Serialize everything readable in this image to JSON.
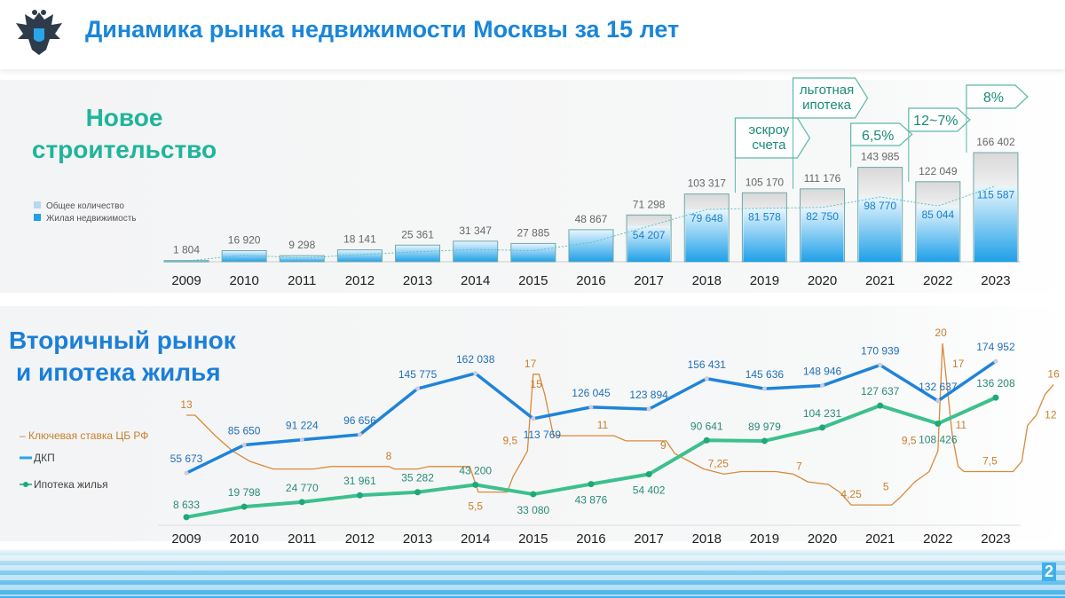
{
  "header": {
    "title": "Динамика рынка недвижимости Москвы за 15 лет",
    "logo": "double-headed-eagle-emblem"
  },
  "page_number": "2",
  "colors": {
    "title": "#1a86d8",
    "new_heading": "#1fb59a",
    "bar_blue": "#2aa5ea",
    "dkp": "#1f84d9",
    "mortgage": "#2fc28f",
    "key_rate": "#d98a3a"
  },
  "chart_data": [
    {
      "type": "bar",
      "title": "Новое строительство",
      "categories": [
        "2009",
        "2010",
        "2011",
        "2012",
        "2013",
        "2014",
        "2015",
        "2016",
        "2017",
        "2018",
        "2019",
        "2020",
        "2021",
        "2022",
        "2023"
      ],
      "series": [
        {
          "name": "Общее количество",
          "values": [
            1804,
            16920,
            9298,
            18141,
            25361,
            31347,
            27885,
            48867,
            71298,
            103317,
            105170,
            111176,
            143985,
            122049,
            166402
          ],
          "labels": [
            "1 804",
            "16 920",
            "9 298",
            "18 141",
            "25 361",
            "31 347",
            "27 885",
            "48 867",
            "71 298",
            "103 317",
            "105 170",
            "111 176",
            "143 985",
            "122 049",
            "166 402"
          ]
        },
        {
          "name": "Жилая недвижимость",
          "values": [
            null,
            null,
            null,
            null,
            null,
            null,
            null,
            null,
            54207,
            79648,
            81578,
            82750,
            98770,
            85044,
            115587
          ],
          "labels": [
            "",
            "",
            "",
            "",
            "",
            "",
            "",
            "",
            "54 207",
            "79 648",
            "81 578",
            "82 750",
            "98 770",
            "85 044",
            "115 587"
          ]
        }
      ],
      "annotations": [
        {
          "year": "2019",
          "text": [
            "эскроу",
            "счета"
          ]
        },
        {
          "year": "2020",
          "text": [
            "льготная",
            "ипотека"
          ]
        },
        {
          "year": "2021",
          "text": [
            "6,5%"
          ]
        },
        {
          "year": "2022",
          "text": [
            "12~7%"
          ]
        },
        {
          "year": "2023",
          "text": [
            "8%"
          ]
        }
      ],
      "trend_line": "dotted",
      "legend": "left"
    },
    {
      "type": "line",
      "title": "Вторичный рынок и ипотека жилья",
      "categories": [
        "2009",
        "2010",
        "2011",
        "2012",
        "2013",
        "2014",
        "2015",
        "2016",
        "2017",
        "2018",
        "2019",
        "2020",
        "2021",
        "2022",
        "2023"
      ],
      "series": [
        {
          "name": "ДКП",
          "values": [
            55673,
            85650,
            91224,
            96656,
            145775,
            162038,
            113769,
            126045,
            123894,
            156431,
            145636,
            148946,
            170939,
            132637,
            174952
          ],
          "labels": [
            "55 673",
            "85 650",
            "91 224",
            "96 656",
            "145 775",
            "162 038",
            "113 769",
            "126 045",
            "123 894",
            "156 431",
            "145 636",
            "148 946",
            "170 939",
            "132 637",
            "174 952"
          ]
        },
        {
          "name": "Ипотека жилья",
          "values": [
            8633,
            19798,
            24770,
            31961,
            35282,
            43200,
            33080,
            43876,
            54402,
            90641,
            89979,
            104231,
            127637,
            108426,
            136208
          ],
          "labels": [
            "8 633",
            "19 798",
            "24 770",
            "31 961",
            "35 282",
            "43 200",
            "33 080",
            "43 876",
            "54 402",
            "90 641",
            "89 979",
            "104 231",
            "127 637",
            "108 426",
            "136 208"
          ]
        },
        {
          "name": "Ключевая ставка ЦБ РФ",
          "points": [
            [
              2009,
              13
            ],
            [
              2009.15,
              13
            ],
            [
              2009.5,
              11
            ],
            [
              2009.8,
              9.5
            ],
            [
              2010.1,
              8.5
            ],
            [
              2010.5,
              7.75
            ],
            [
              2011.2,
              7.75
            ],
            [
              2011.5,
              8
            ],
            [
              2012.5,
              8
            ],
            [
              2012.6,
              7.75
            ],
            [
              2013,
              7.75
            ],
            [
              2013.2,
              8
            ],
            [
              2013.9,
              8
            ],
            [
              2014.05,
              5.5
            ],
            [
              2014.55,
              5.5
            ],
            [
              2014.65,
              7
            ],
            [
              2014.75,
              8
            ],
            [
              2014.9,
              9.5
            ],
            [
              2015.0,
              17
            ],
            [
              2015.1,
              17
            ],
            [
              2015.2,
              15
            ],
            [
              2015.35,
              11
            ],
            [
              2016.4,
              11
            ],
            [
              2016.6,
              10.5
            ],
            [
              2017.3,
              10.5
            ],
            [
              2017.45,
              9.25
            ],
            [
              2017.7,
              8.5
            ],
            [
              2017.95,
              7.75
            ],
            [
              2018.3,
              7.25
            ],
            [
              2018.6,
              7.5
            ],
            [
              2019.2,
              7.5
            ],
            [
              2019.5,
              7.25
            ],
            [
              2019.75,
              6.5
            ],
            [
              2020.1,
              6.25
            ],
            [
              2020.3,
              5.5
            ],
            [
              2020.5,
              4.25
            ],
            [
              2021.2,
              4.25
            ],
            [
              2021.35,
              5
            ],
            [
              2021.6,
              6.5
            ],
            [
              2021.85,
              7.5
            ],
            [
              2022.0,
              9.5
            ],
            [
              2022.08,
              20
            ],
            [
              2022.25,
              11
            ],
            [
              2022.35,
              8
            ],
            [
              2022.45,
              7.5
            ],
            [
              2023.3,
              7.5
            ],
            [
              2023.45,
              8.5
            ],
            [
              2023.55,
              12
            ],
            [
              2023.7,
              13
            ],
            [
              2023.85,
              15
            ],
            [
              2024.0,
              16
            ]
          ],
          "labels": [
            {
              "year": 2009,
              "value": 13,
              "text": "13"
            },
            {
              "year": 2012.5,
              "value": 8,
              "text": "8"
            },
            {
              "year": 2014,
              "value": 5.5,
              "text": "5,5"
            },
            {
              "year": 2014.6,
              "value": 9.5,
              "text": "9,5"
            },
            {
              "year": 2014.95,
              "value": 17,
              "text": "17"
            },
            {
              "year": 2015.05,
              "value": 15,
              "text": "15"
            },
            {
              "year": 2016.2,
              "value": 11,
              "text": "11"
            },
            {
              "year": 2017.25,
              "value": 9,
              "text": "9"
            },
            {
              "year": 2018.2,
              "value": 7.25,
              "text": "7,25"
            },
            {
              "year": 2019.6,
              "value": 7,
              "text": "7"
            },
            {
              "year": 2020.5,
              "value": 4.25,
              "text": "4,25"
            },
            {
              "year": 2021.1,
              "value": 5,
              "text": "5"
            },
            {
              "year": 2021.5,
              "value": 9.5,
              "text": "9,5"
            },
            {
              "year": 2022.05,
              "value": 20,
              "text": "20"
            },
            {
              "year": 2022.35,
              "value": 17,
              "text": "17"
            },
            {
              "year": 2022.4,
              "value": 11,
              "text": "11"
            },
            {
              "year": 2022.9,
              "value": 7.5,
              "text": "7,5"
            },
            {
              "year": 2023.95,
              "value": 12,
              "text": "12"
            },
            {
              "year": 2024.0,
              "value": 16,
              "text": "16"
            }
          ]
        }
      ],
      "legend": "left"
    }
  ]
}
